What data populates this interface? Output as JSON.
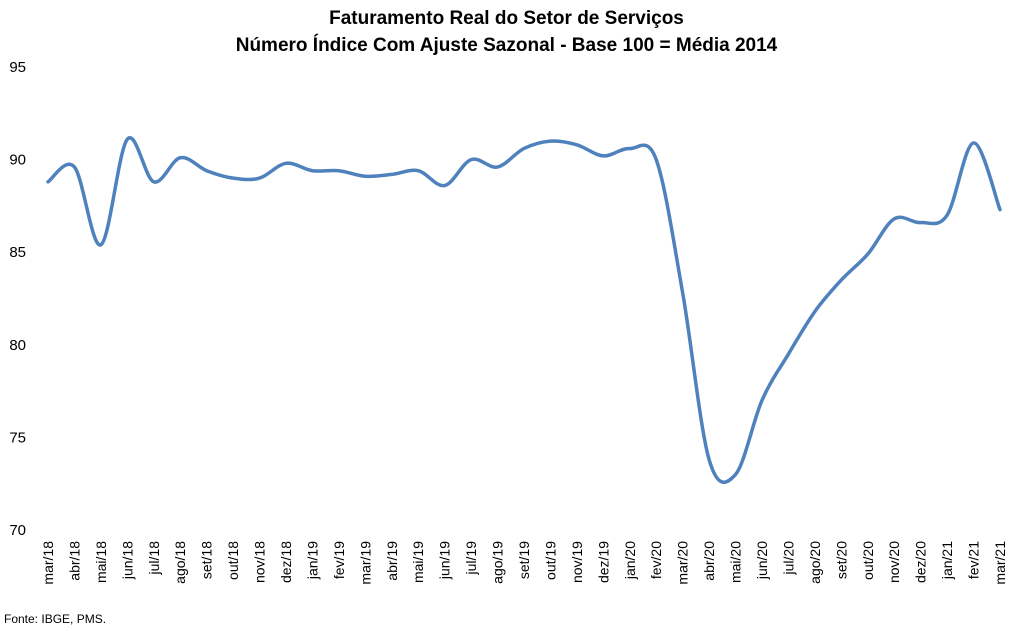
{
  "chart_data": {
    "type": "line",
    "title": "Faturamento Real do Setor de Serviços",
    "subtitle": "Número Índice Com Ajuste Sazonal - Base 100 = Média 2014",
    "xlabel": "",
    "ylabel": "",
    "ylim": [
      70,
      95
    ],
    "yticks": [
      70,
      75,
      80,
      85,
      90,
      95
    ],
    "grid": false,
    "categories": [
      "mar/18",
      "abr/18",
      "mai/18",
      "jun/18",
      "jul/18",
      "ago/18",
      "set/18",
      "out/18",
      "nov/18",
      "dez/18",
      "jan/19",
      "fev/19",
      "mar/19",
      "abr/19",
      "mai/19",
      "jun/19",
      "jul/19",
      "ago/19",
      "set/19",
      "out/19",
      "nov/19",
      "dez/19",
      "jan/20",
      "fev/20",
      "mar/20",
      "abr/20",
      "mai/20",
      "jun/20",
      "jul/20",
      "ago/20",
      "set/20",
      "out/20",
      "nov/20",
      "dez/20",
      "jan/21",
      "fev/21",
      "mar/21"
    ],
    "series": [
      {
        "color": "#4F81BD",
        "values": [
          88.8,
          89.6,
          85.4,
          91.1,
          88.8,
          90.1,
          89.4,
          89.0,
          89.0,
          89.8,
          89.4,
          89.4,
          89.1,
          89.2,
          89.4,
          88.6,
          90.0,
          89.6,
          90.6,
          91.0,
          90.8,
          90.2,
          90.6,
          90.0,
          82.8,
          73.8,
          73.0,
          77.0,
          79.5,
          81.8,
          83.5,
          84.9,
          86.8,
          86.6,
          87.0,
          90.9,
          87.3
        ]
      }
    ]
  },
  "source": "Fonte: IBGE, PMS."
}
